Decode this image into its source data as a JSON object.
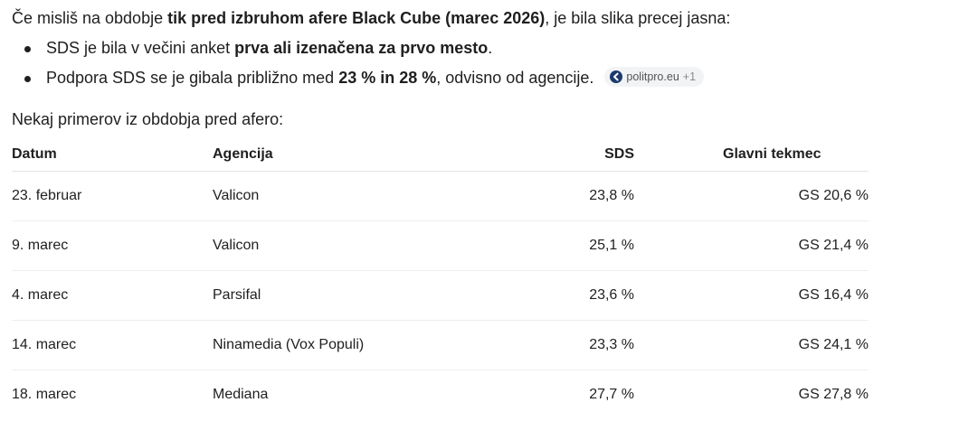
{
  "intro": {
    "part1": "Če misliš na obdobje ",
    "bold1": "tik pred izbruhom afere Black Cube (marec 2026)",
    "part2": ", je bila slika precej jasna:"
  },
  "bullets": [
    {
      "pre": "SDS je bila v večini anket ",
      "bold": "prva ali izenačena za prvo mesto",
      "post": "."
    },
    {
      "pre": "Podpora SDS se je gibala približno med ",
      "bold": "23 % in 28 %",
      "post": ", odvisno od agencije."
    }
  ],
  "source_chip": {
    "label": "politpro.eu",
    "more": "+1",
    "icon": "politpro-logo-icon"
  },
  "subheading": "Nekaj primerov iz obdobja pred afero:",
  "table": {
    "headers": [
      "Datum",
      "Agencija",
      "SDS",
      "Glavni tekmec"
    ],
    "rows": [
      [
        "23. februar",
        "Valicon",
        "23,8 %",
        "GS 20,6 %"
      ],
      [
        "9. marec",
        "Valicon",
        "25,1 %",
        "GS 21,4 %"
      ],
      [
        "4. marec",
        "Parsifal",
        "23,6 %",
        "GS 16,4 %"
      ],
      [
        "14. marec",
        "Ninamedia (Vox Populi)",
        "23,3 %",
        "GS 24,1 %"
      ],
      [
        "18. marec",
        "Mediana",
        "27,7 %",
        "GS 27,8 %"
      ]
    ]
  }
}
